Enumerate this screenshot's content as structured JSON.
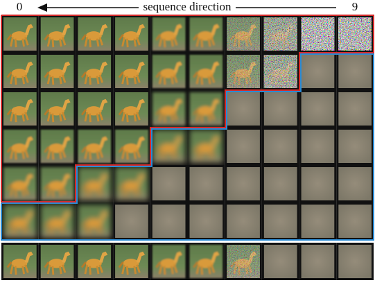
{
  "header": {
    "start_label": "0",
    "direction_label": "sequence direction",
    "end_label": "9"
  }
}
